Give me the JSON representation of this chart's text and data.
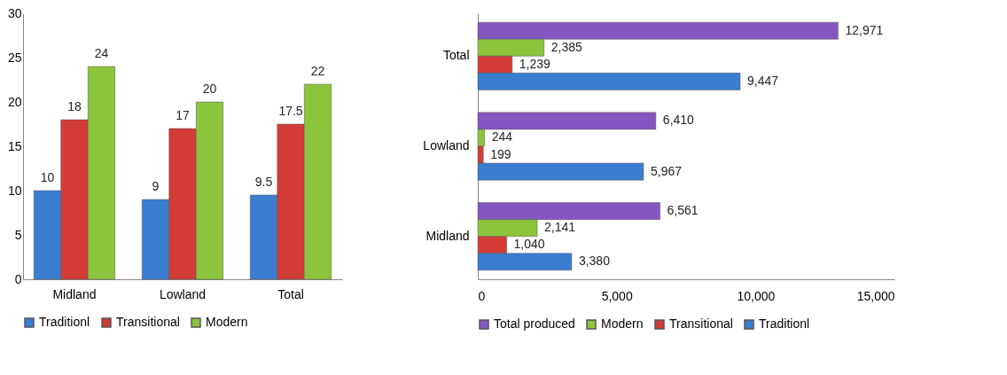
{
  "chart_data": [
    {
      "type": "bar",
      "categories": [
        "Midland",
        "Lowland",
        "Total"
      ],
      "ylim": [
        0,
        30
      ],
      "yticks": [
        0,
        5,
        10,
        15,
        20,
        25,
        30
      ],
      "grid": false,
      "legend": "bottom",
      "data_labels": true,
      "series": [
        {
          "name": "Traditionl",
          "color": "#3a7dd1",
          "values": [
            10,
            9,
            9.5
          ]
        },
        {
          "name": "Transitional",
          "color": "#d23b36",
          "values": [
            18,
            17,
            17.5
          ]
        },
        {
          "name": "Modern",
          "color": "#8cc43c",
          "values": [
            24,
            20,
            22
          ]
        }
      ]
    },
    {
      "type": "bar",
      "orientation": "horizontal",
      "categories": [
        "Total",
        "Lowland",
        "Midland"
      ],
      "xlim": [
        0,
        15000
      ],
      "xticks": [
        0,
        {
          "value": 5000,
          "label": "5,000"
        },
        {
          "value": 10000,
          "label": "10,000"
        },
        {
          "value": 15000,
          "label": "15,000"
        }
      ],
      "grid": false,
      "legend": "bottom",
      "series": [
        {
          "name": "Total produced",
          "color": "#8656c0",
          "values": [
            12971,
            6410,
            6561
          ],
          "value_labels": [
            "12,971",
            "6,410",
            "6,561"
          ]
        },
        {
          "name": "Modern",
          "color": "#8cc43c",
          "values": [
            2385,
            244,
            2141
          ],
          "value_labels": [
            "2,385",
            "244",
            "2,141"
          ]
        },
        {
          "name": "Transitional",
          "color": "#d23b36",
          "values": [
            1239,
            199,
            1040
          ],
          "value_labels": [
            "1,239",
            "199",
            "1,040"
          ]
        },
        {
          "name": "Traditionl",
          "color": "#3a7dd1",
          "values": [
            9447,
            5967,
            3380
          ],
          "value_labels": [
            "9,447",
            "5,967",
            "3,380"
          ]
        }
      ]
    }
  ]
}
